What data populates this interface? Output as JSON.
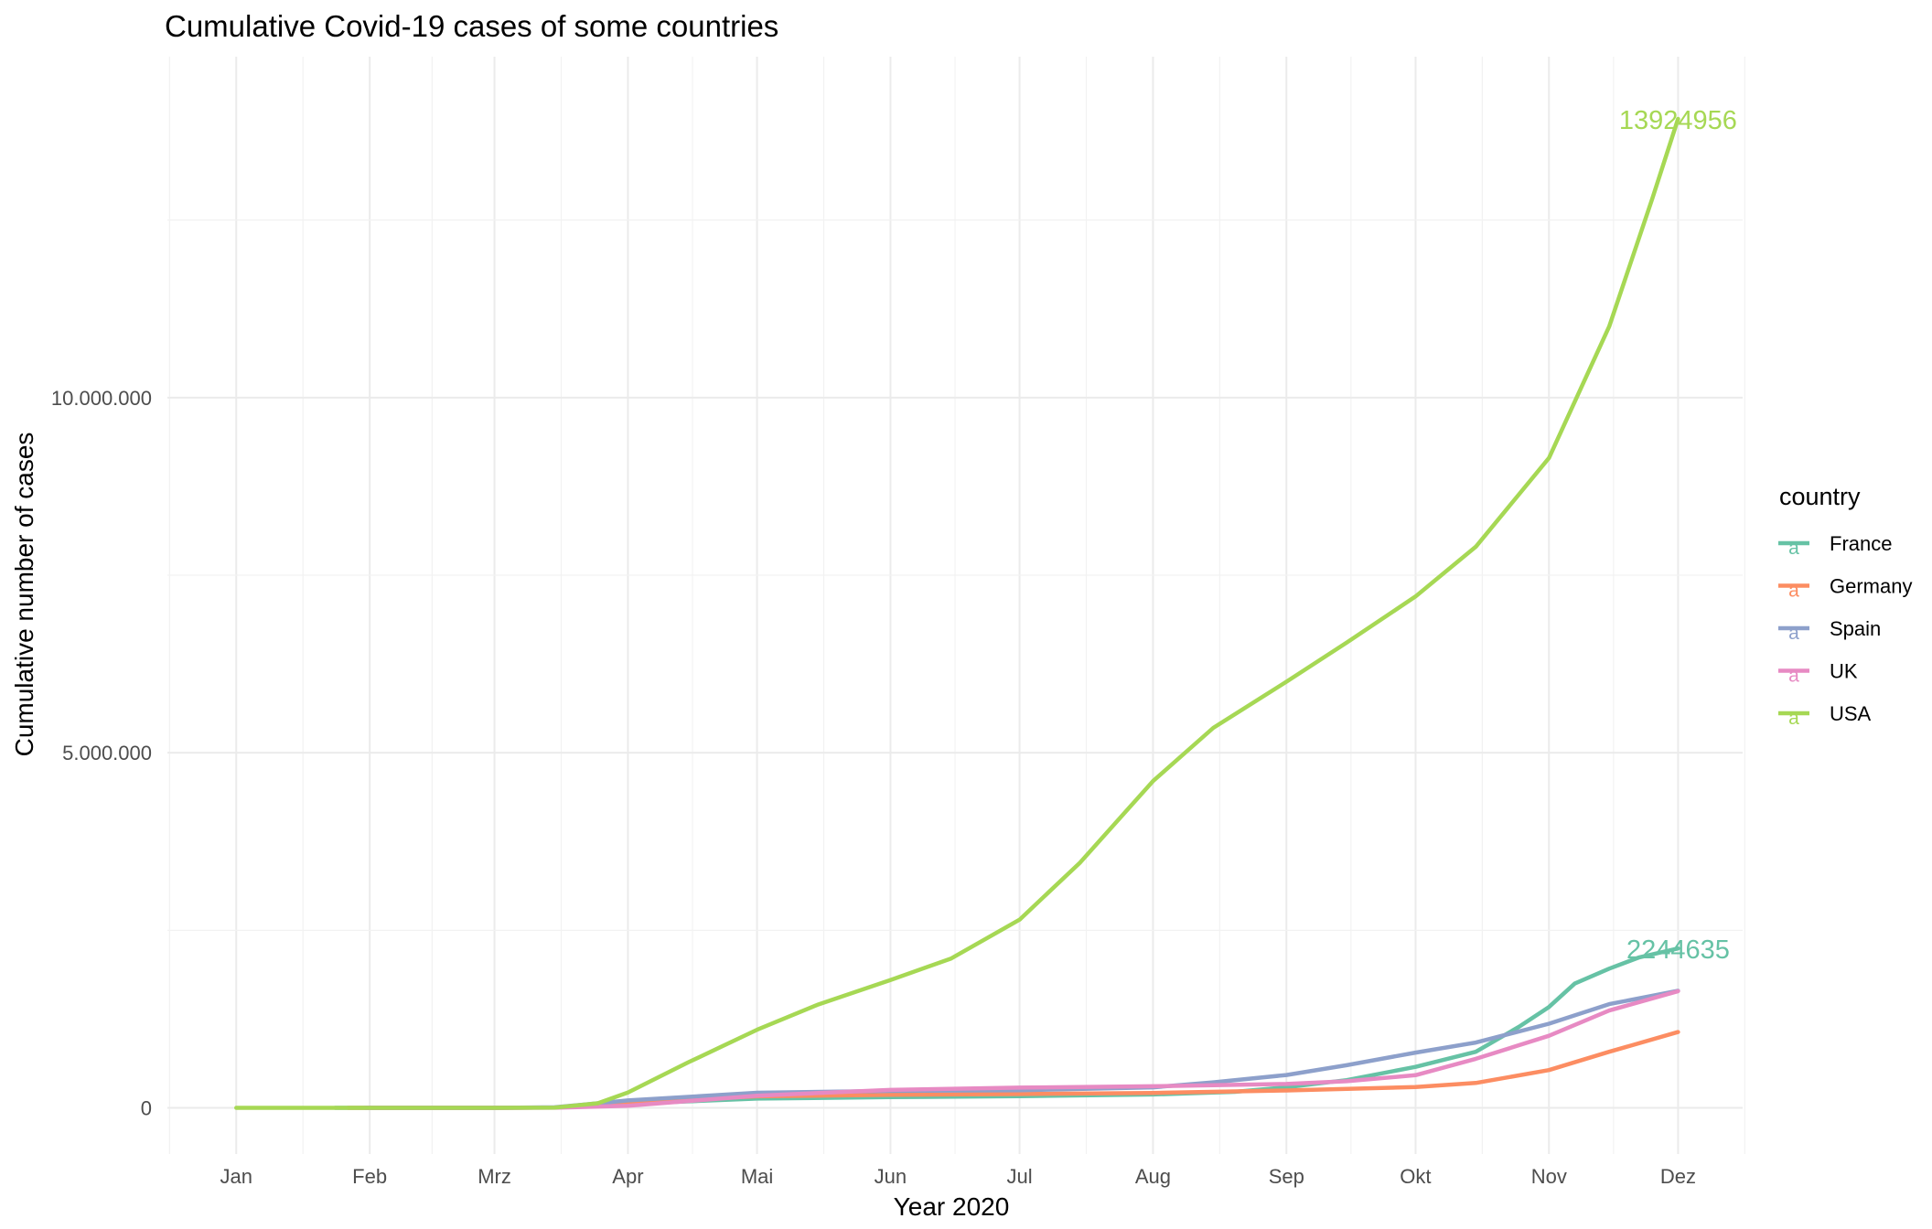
{
  "chart_data": {
    "type": "line",
    "title": "Cumulative Covid-19 cases of some countries",
    "xlabel": "Year 2020",
    "ylabel": "Cumulative number of cases",
    "x_ticks": [
      "Jan",
      "Feb",
      "Mrz",
      "Apr",
      "Mai",
      "Jun",
      "Jul",
      "Aug",
      "Sep",
      "Okt",
      "Nov",
      "Dez"
    ],
    "x_tick_dates": [
      "2020-01-01",
      "2020-02-01",
      "2020-03-01",
      "2020-04-01",
      "2020-05-01",
      "2020-06-01",
      "2020-07-01",
      "2020-08-01",
      "2020-09-01",
      "2020-10-01",
      "2020-11-01",
      "2020-12-01"
    ],
    "xlim": [
      "2019-12-16",
      "2020-12-16"
    ],
    "y_ticks": [
      0,
      5000000,
      10000000
    ],
    "y_tick_labels": [
      "0",
      "5.000.000",
      "10.000.000"
    ],
    "ylim": [
      -650000,
      14800000
    ],
    "grid": true,
    "legend": {
      "title": "country",
      "placement": "right",
      "glyph": "a"
    },
    "series": [
      {
        "name": "France",
        "color": "#66C2A5",
        "end_label": "2244635",
        "points": [
          [
            "2020-01-24",
            0
          ],
          [
            "2020-03-01",
            130
          ],
          [
            "2020-03-15",
            5400
          ],
          [
            "2020-04-01",
            57000
          ],
          [
            "2020-05-01",
            130000
          ],
          [
            "2020-06-01",
            151000
          ],
          [
            "2020-07-01",
            165000
          ],
          [
            "2020-08-01",
            188000
          ],
          [
            "2020-08-20",
            225000
          ],
          [
            "2020-09-01",
            290000
          ],
          [
            "2020-09-15",
            390000
          ],
          [
            "2020-10-01",
            577000
          ],
          [
            "2020-10-15",
            790000
          ],
          [
            "2020-10-25",
            1140000
          ],
          [
            "2020-11-01",
            1420000
          ],
          [
            "2020-11-07",
            1750000
          ],
          [
            "2020-11-15",
            1960000
          ],
          [
            "2020-11-22",
            2120000
          ],
          [
            "2020-12-01",
            2244635
          ]
        ]
      },
      {
        "name": "Germany",
        "color": "#FC8D62",
        "end_label": "",
        "points": [
          [
            "2020-01-27",
            0
          ],
          [
            "2020-03-01",
            130
          ],
          [
            "2020-03-15",
            5800
          ],
          [
            "2020-04-01",
            72000
          ],
          [
            "2020-05-01",
            163000
          ],
          [
            "2020-06-01",
            183000
          ],
          [
            "2020-07-01",
            195000
          ],
          [
            "2020-08-01",
            210000
          ],
          [
            "2020-09-01",
            245000
          ],
          [
            "2020-10-01",
            292000
          ],
          [
            "2020-10-15",
            350000
          ],
          [
            "2020-11-01",
            532000
          ],
          [
            "2020-11-15",
            790000
          ],
          [
            "2020-12-01",
            1067000
          ]
        ]
      },
      {
        "name": "Spain",
        "color": "#8DA0CB",
        "end_label": "",
        "points": [
          [
            "2020-01-31",
            0
          ],
          [
            "2020-03-01",
            80
          ],
          [
            "2020-03-15",
            7800
          ],
          [
            "2020-04-01",
            104000
          ],
          [
            "2020-05-01",
            213000
          ],
          [
            "2020-06-01",
            239000
          ],
          [
            "2020-07-01",
            249000
          ],
          [
            "2020-08-01",
            288000
          ],
          [
            "2020-08-15",
            360000
          ],
          [
            "2020-09-01",
            463000
          ],
          [
            "2020-09-15",
            600000
          ],
          [
            "2020-10-01",
            778000
          ],
          [
            "2020-10-15",
            920000
          ],
          [
            "2020-11-01",
            1185000
          ],
          [
            "2020-11-15",
            1460000
          ],
          [
            "2020-12-01",
            1648000
          ]
        ]
      },
      {
        "name": "UK",
        "color": "#E78AC3",
        "end_label": "",
        "points": [
          [
            "2020-01-31",
            0
          ],
          [
            "2020-03-01",
            40
          ],
          [
            "2020-03-15",
            1400
          ],
          [
            "2020-04-01",
            29000
          ],
          [
            "2020-05-01",
            172000
          ],
          [
            "2020-06-01",
            252000
          ],
          [
            "2020-07-01",
            285000
          ],
          [
            "2020-08-01",
            304000
          ],
          [
            "2020-09-01",
            336000
          ],
          [
            "2020-09-15",
            375000
          ],
          [
            "2020-10-01",
            460000
          ],
          [
            "2020-10-15",
            690000
          ],
          [
            "2020-11-01",
            1015000
          ],
          [
            "2020-11-15",
            1370000
          ],
          [
            "2020-12-01",
            1643000
          ]
        ]
      },
      {
        "name": "USA",
        "color": "#A6D854",
        "end_label": "13924956",
        "points": [
          [
            "2020-01-01",
            0
          ],
          [
            "2020-02-01",
            8
          ],
          [
            "2020-03-01",
            75
          ],
          [
            "2020-03-15",
            3500
          ],
          [
            "2020-03-25",
            65000
          ],
          [
            "2020-04-01",
            215000
          ],
          [
            "2020-04-15",
            640000
          ],
          [
            "2020-05-01",
            1100000
          ],
          [
            "2020-05-15",
            1450000
          ],
          [
            "2020-06-01",
            1800000
          ],
          [
            "2020-06-15",
            2100000
          ],
          [
            "2020-07-01",
            2650000
          ],
          [
            "2020-07-15",
            3450000
          ],
          [
            "2020-08-01",
            4600000
          ],
          [
            "2020-08-15",
            5350000
          ],
          [
            "2020-09-01",
            6000000
          ],
          [
            "2020-09-15",
            6550000
          ],
          [
            "2020-10-01",
            7200000
          ],
          [
            "2020-10-15",
            7900000
          ],
          [
            "2020-11-01",
            9150000
          ],
          [
            "2020-11-15",
            11000000
          ],
          [
            "2020-11-25",
            12800000
          ],
          [
            "2020-12-01",
            13924956
          ]
        ]
      }
    ]
  }
}
